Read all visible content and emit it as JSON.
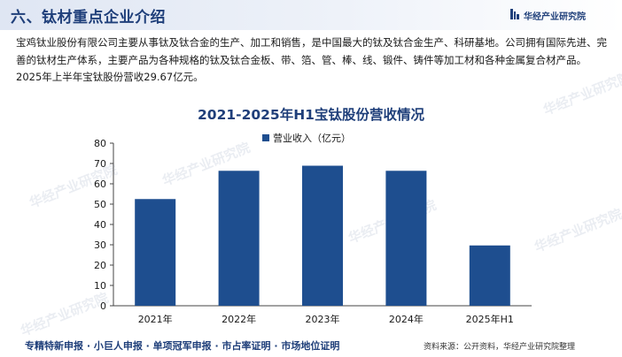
{
  "header": {
    "section_title": "六、钛材重点企业介绍",
    "brand_name": "华经产业研究院"
  },
  "intro": {
    "text": "宝鸡钛业股份有限公司主要从事钛及钛合金的生产、加工和销售，是中国最大的钛及钛合金生产、科研基地。公司拥有国际先进、完善的钛材生产体系，主要产品为各种规格的钛及钛合金板、带、箔、管、棒、线、锻件、铸件等加工材和各种金属复合材产品。2025年上半年宝钛股份营收29.67亿元。"
  },
  "watermark_text": "华经产业研究院",
  "chart_data": {
    "type": "bar",
    "title": "2021-2025年H1宝钛股份营收情况",
    "categories": [
      "2021年",
      "2022年",
      "2023年",
      "2024年",
      "2025年H1"
    ],
    "series": [
      {
        "name": "营业收入（亿元）",
        "values": [
          52.5,
          66.4,
          68.9,
          66.4,
          29.67
        ]
      }
    ],
    "ylim": [
      0,
      80
    ],
    "yticks": [
      0,
      10,
      20,
      30,
      40,
      50,
      60,
      70,
      80
    ],
    "grid": false,
    "legend_position": "top-center",
    "bar_color": "#1e4e8f"
  },
  "footer": {
    "left_text": "专精特新申报 · 小巨人申报 · 单项冠军申报 · 市占率证明 · 市场地位证明",
    "source_text": "资料来源：公开资料，华经产业研究院整理"
  }
}
